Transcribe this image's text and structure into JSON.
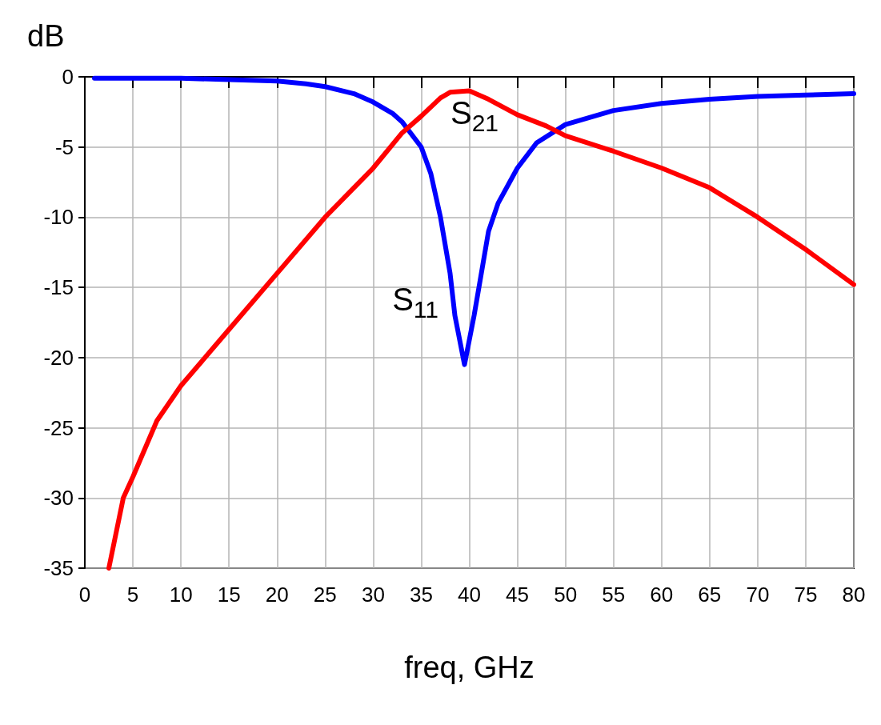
{
  "chart_data": {
    "type": "line",
    "xlabel": "freq, GHz",
    "ylabel": "dB",
    "xlim": [
      0,
      80
    ],
    "xticks": [
      0,
      5,
      10,
      15,
      20,
      25,
      30,
      35,
      40,
      45,
      50,
      55,
      60,
      65,
      70,
      75,
      80
    ],
    "ylim": [
      -35,
      0
    ],
    "yticks": [
      -35,
      -30,
      -25,
      -20,
      -15,
      -10,
      -5,
      0
    ],
    "grid": true,
    "line_style": "solid",
    "marker": "none",
    "series": [
      {
        "name": "S$_{11}$",
        "color": "#0000ff",
        "x": [
          1,
          10,
          15,
          20,
          23,
          25,
          28,
          30,
          32,
          33,
          35,
          36,
          37,
          38,
          38.5,
          39.5,
          40.5,
          41,
          42,
          43,
          45,
          47,
          50,
          55,
          60,
          65,
          70,
          75,
          80
        ],
        "values": [
          -0.1,
          -0.1,
          -0.2,
          -0.3,
          -0.5,
          -0.7,
          -1.2,
          -1.8,
          -2.6,
          -3.2,
          -5,
          -6.9,
          -10,
          -14,
          -17,
          -20.5,
          -17,
          -15,
          -11,
          -9,
          -6.5,
          -4.7,
          -3.4,
          -2.4,
          -1.9,
          -1.6,
          -1.4,
          -1.3,
          -1.2
        ]
      },
      {
        "name": "S$_{21}$",
        "color": "#ff0000",
        "x": [
          2.5,
          4,
          5,
          7.5,
          10,
          15,
          20,
          25,
          30,
          33,
          35,
          37,
          38,
          40,
          42,
          45,
          48,
          50,
          55,
          60,
          65,
          70,
          75,
          80
        ],
        "values": [
          -35,
          -30,
          -28.5,
          -24.5,
          -22,
          -18,
          -14,
          -10,
          -6.5,
          -4,
          -2.8,
          -1.5,
          -1.1,
          -1,
          -1.6,
          -2.7,
          -3.5,
          -4.2,
          -5.3,
          -6.5,
          -7.9,
          -10,
          -12.3,
          -14.8
        ]
      }
    ]
  }
}
